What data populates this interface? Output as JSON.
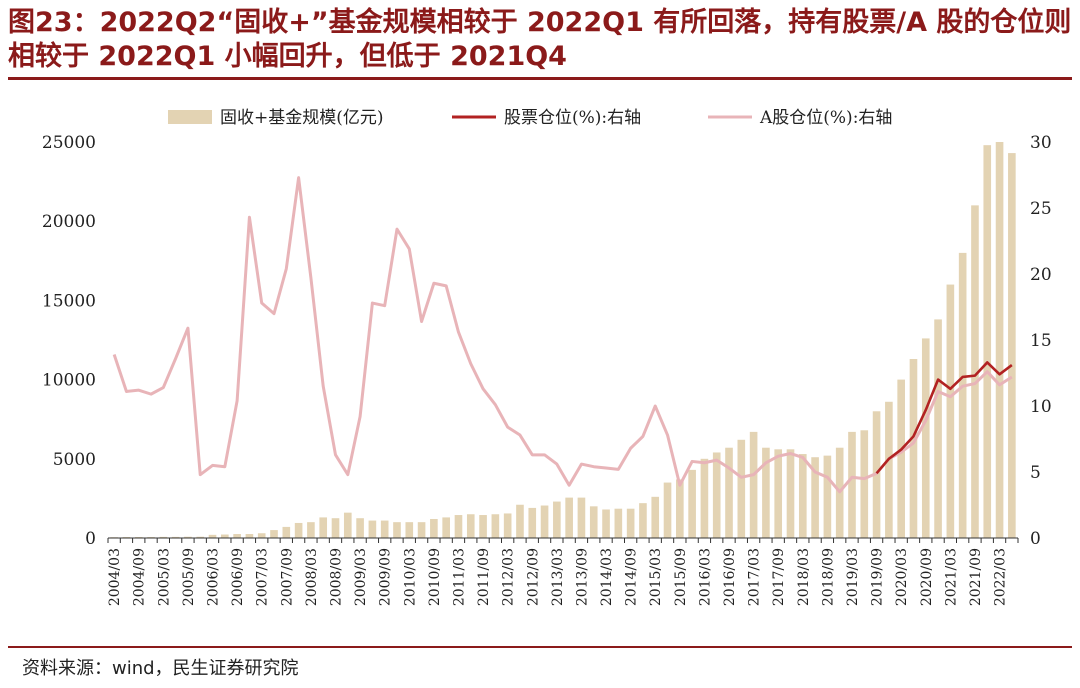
{
  "title": "图23：2022Q2“固收+”基金规模相较于 2022Q1 有所回落，持有股票/A 股的仓位则相较于 2022Q1 小幅回升，但低于 2021Q4",
  "source": "资料来源：wind，民生证券研究院",
  "colors": {
    "title": "#8b1a1a",
    "bar": "#e3d3b3",
    "stock": "#b22222",
    "ashare": "#e8b4b8"
  },
  "chart_data": {
    "type": "bar+line",
    "categories": [
      "2004/03",
      "2004/06",
      "2004/09",
      "2004/12",
      "2005/03",
      "2005/06",
      "2005/09",
      "2005/12",
      "2006/03",
      "2006/06",
      "2006/09",
      "2006/12",
      "2007/03",
      "2007/06",
      "2007/09",
      "2007/12",
      "2008/03",
      "2008/06",
      "2008/09",
      "2008/12",
      "2009/03",
      "2009/06",
      "2009/09",
      "2009/12",
      "2010/03",
      "2010/06",
      "2010/09",
      "2010/12",
      "2011/03",
      "2011/06",
      "2011/09",
      "2011/12",
      "2012/03",
      "2012/06",
      "2012/09",
      "2012/12",
      "2013/03",
      "2013/06",
      "2013/09",
      "2013/12",
      "2014/03",
      "2014/06",
      "2014/09",
      "2014/12",
      "2015/03",
      "2015/06",
      "2015/09",
      "2015/12",
      "2016/03",
      "2016/06",
      "2016/09",
      "2016/12",
      "2017/03",
      "2017/06",
      "2017/09",
      "2017/12",
      "2018/03",
      "2018/06",
      "2018/09",
      "2018/12",
      "2019/03",
      "2019/06",
      "2019/09",
      "2019/12",
      "2020/03",
      "2020/06",
      "2020/09",
      "2020/12",
      "2021/03",
      "2021/06",
      "2021/09",
      "2021/12",
      "2022/03",
      "2022/06"
    ],
    "xtick_labels": [
      "2004/03",
      "2004/09",
      "2005/03",
      "2005/09",
      "2006/03",
      "2006/09",
      "2007/03",
      "2007/09",
      "2008/03",
      "2008/09",
      "2009/03",
      "2009/09",
      "2010/03",
      "2010/09",
      "2011/03",
      "2011/09",
      "2012/03",
      "2012/09",
      "2013/03",
      "2013/09",
      "2014/03",
      "2014/09",
      "2015/03",
      "2015/09",
      "2016/03",
      "2016/09",
      "2017/03",
      "2017/09",
      "2018/03",
      "2018/09",
      "2019/03",
      "2019/09",
      "2020/03",
      "2020/09",
      "2021/03",
      "2021/09",
      "2022/03"
    ],
    "series": [
      {
        "name": "固收+基金规模(亿元)",
        "type": "bar",
        "axis": "left",
        "values": [
          50,
          60,
          60,
          60,
          70,
          70,
          80,
          80,
          200,
          220,
          250,
          250,
          300,
          500,
          700,
          950,
          1000,
          1300,
          1250,
          1600,
          1250,
          1100,
          1100,
          1000,
          1000,
          1000,
          1200,
          1300,
          1450,
          1500,
          1450,
          1500,
          1550,
          2100,
          1900,
          2050,
          2300,
          2550,
          2550,
          2000,
          1800,
          1850,
          1850,
          2200,
          2600,
          3500,
          3700,
          4300,
          5000,
          5400,
          5700,
          6200,
          6700,
          5700,
          5600,
          5600,
          5300,
          5100,
          5200,
          5700,
          6700,
          6800,
          8000,
          8600,
          10000,
          11300,
          12600,
          13800,
          16000,
          18000,
          21000,
          24800,
          25000,
          24300
        ]
      },
      {
        "name": "股票仓位(%):右轴",
        "type": "line",
        "axis": "right",
        "values": [
          13.9,
          11.1,
          11.2,
          10.9,
          11.4,
          13.6,
          15.9,
          4.8,
          5.5,
          5.4,
          10.4,
          24.3,
          17.8,
          17.0,
          20.4,
          27.3,
          19.7,
          11.5,
          6.3,
          4.8,
          9.2,
          17.8,
          17.6,
          23.4,
          21.9,
          16.4,
          19.3,
          19.1,
          15.6,
          13.2,
          11.3,
          10.1,
          8.4,
          7.8,
          6.3,
          6.3,
          5.6,
          4.0,
          5.6,
          5.4,
          5.3,
          5.2,
          6.8,
          7.7,
          10.0,
          7.8,
          4.0,
          5.8,
          5.7,
          5.9,
          5.3,
          4.6,
          4.8,
          5.7,
          6.2,
          6.4,
          6.1,
          5.0,
          4.6,
          3.5,
          4.6,
          4.5,
          4.9,
          6.0,
          6.7,
          7.7,
          9.7,
          12.0,
          11.3,
          12.2,
          12.3,
          13.3,
          12.4,
          13.1
        ]
      },
      {
        "name": "A股仓位(%):右轴",
        "type": "line",
        "axis": "right",
        "values": [
          13.9,
          11.1,
          11.2,
          10.9,
          11.4,
          13.6,
          15.9,
          4.8,
          5.5,
          5.4,
          10.4,
          24.3,
          17.8,
          17.0,
          20.4,
          27.3,
          19.7,
          11.5,
          6.3,
          4.8,
          9.2,
          17.8,
          17.6,
          23.4,
          21.9,
          16.4,
          19.3,
          19.1,
          15.6,
          13.2,
          11.3,
          10.1,
          8.4,
          7.8,
          6.3,
          6.3,
          5.6,
          4.0,
          5.6,
          5.4,
          5.3,
          5.2,
          6.8,
          7.7,
          10.0,
          7.8,
          4.0,
          5.8,
          5.7,
          5.9,
          5.3,
          4.6,
          4.8,
          5.7,
          6.2,
          6.4,
          6.1,
          5.0,
          4.6,
          3.5,
          4.6,
          4.5,
          4.9,
          6.0,
          6.5,
          7.2,
          8.9,
          11.1,
          10.7,
          11.5,
          11.7,
          12.6,
          11.6,
          12.2
        ]
      }
    ],
    "ylim_left": [
      0,
      25000
    ],
    "yticks_left": [
      "0",
      "5000",
      "10000",
      "15000",
      "20000",
      "25000"
    ],
    "ylim_right": [
      0,
      30
    ],
    "yticks_right": [
      "0",
      "5",
      "10",
      "15",
      "20",
      "25",
      "30"
    ],
    "legend_position": "top-center"
  }
}
